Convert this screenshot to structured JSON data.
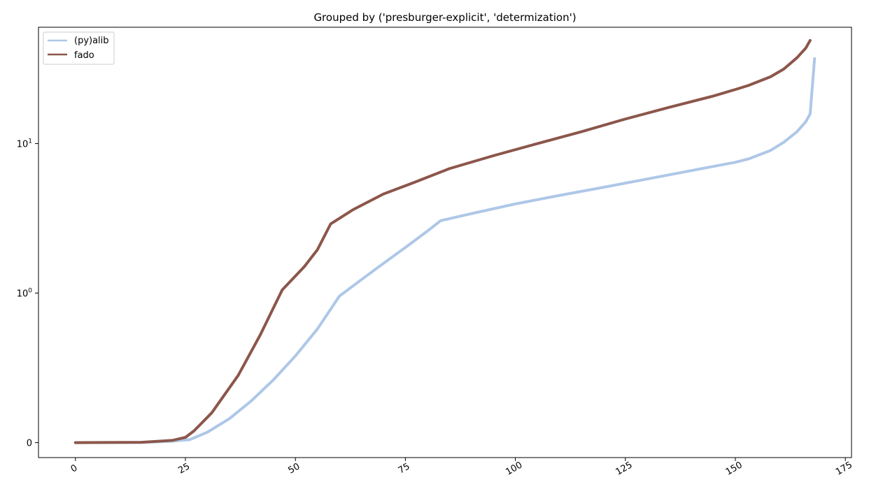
{
  "chart_data": {
    "type": "line",
    "title": "Grouped by ('presburger-explicit', 'determization')",
    "xlabel": "",
    "ylabel": "",
    "xlim": [
      -8.4,
      176.4
    ],
    "ylim": [
      -0.1,
      60
    ],
    "yscale": "symlog",
    "x_ticks": [
      "0",
      "25",
      "50",
      "75",
      "100",
      "125",
      "150",
      "175"
    ],
    "x_tick_values": [
      0,
      25,
      50,
      75,
      100,
      125,
      150,
      175
    ],
    "y_ticks": [
      {
        "base": "0",
        "exp": ""
      },
      {
        "base": "10",
        "exp": "0"
      },
      {
        "base": "10",
        "exp": "1"
      }
    ],
    "y_tick_values": [
      0,
      1,
      10
    ],
    "grid": false,
    "legend_position": "top-left",
    "series": [
      {
        "name": "(py)alib",
        "color": "#aec7e8",
        "x": [
          0,
          15,
          22,
          26,
          30,
          35,
          40,
          45,
          50,
          55,
          60,
          65,
          70,
          75,
          80,
          83,
          90,
          100,
          110,
          120,
          130,
          140,
          150,
          153,
          158,
          161,
          164,
          166,
          167,
          168
        ],
        "y": [
          0,
          0.001,
          0.01,
          0.02,
          0.07,
          0.16,
          0.28,
          0.42,
          0.58,
          0.76,
          0.98,
          1.23,
          1.58,
          2.02,
          2.6,
          3.05,
          3.4,
          3.95,
          4.5,
          5.1,
          5.8,
          6.6,
          7.5,
          7.9,
          9.0,
          10.2,
          12.0,
          14.0,
          15.8,
          37
        ]
      },
      {
        "name": "fado",
        "color": "#8c564b",
        "x": [
          0,
          15,
          22,
          25,
          27,
          31,
          37,
          42,
          47,
          52,
          55,
          58,
          63,
          70,
          77,
          85,
          95,
          105,
          115,
          125,
          135,
          145,
          150,
          153,
          158,
          161,
          164,
          166,
          167
        ],
        "y": [
          0,
          0.002,
          0.015,
          0.035,
          0.08,
          0.2,
          0.45,
          0.72,
          1.05,
          1.5,
          1.95,
          2.9,
          3.6,
          4.6,
          5.5,
          6.8,
          8.3,
          10.0,
          12.0,
          14.6,
          17.5,
          20.8,
          23.0,
          24.5,
          28.0,
          31.5,
          37.5,
          43.5,
          49
        ]
      }
    ]
  }
}
